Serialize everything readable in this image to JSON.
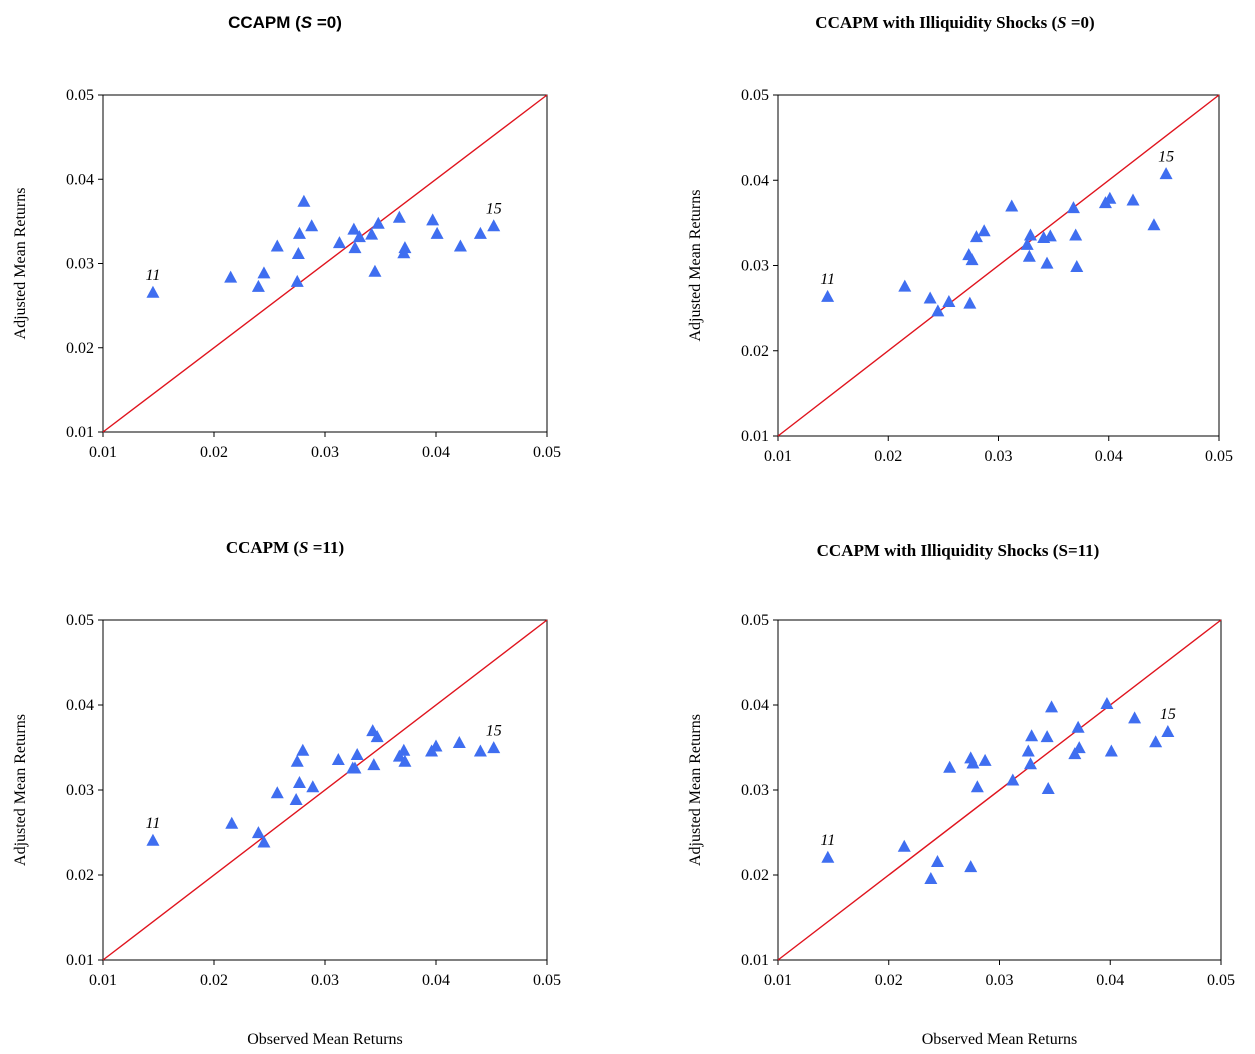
{
  "chart_data": [
    {
      "type": "scatter",
      "title_prefix": "CCAPM (",
      "title_var": "S",
      "title_suffix": " =0)",
      "xlabel": "",
      "ylabel": "Adjusted Mean Returns",
      "xlim": [
        0.01,
        0.05
      ],
      "ylim": [
        0.01,
        0.05
      ],
      "xticks": [
        "0.01",
        "0.02",
        "0.03",
        "0.04",
        "0.05"
      ],
      "yticks": [
        "0.01",
        "0.02",
        "0.03",
        "0.04",
        "0.05"
      ],
      "reference_line": "45-degree",
      "reference_color": "#e0141e",
      "marker_color": "#3f6ef0",
      "annotations": [
        {
          "text": "11",
          "x": 0.0145,
          "y": 0.0265
        },
        {
          "text": "15",
          "x": 0.0452,
          "y": 0.0344
        }
      ],
      "points": [
        [
          0.0145,
          0.0265
        ],
        [
          0.0215,
          0.0283
        ],
        [
          0.024,
          0.0272
        ],
        [
          0.0245,
          0.0288
        ],
        [
          0.0257,
          0.032
        ],
        [
          0.0275,
          0.0278
        ],
        [
          0.0276,
          0.0311
        ],
        [
          0.0277,
          0.0335
        ],
        [
          0.0281,
          0.0373
        ],
        [
          0.0288,
          0.0344
        ],
        [
          0.0313,
          0.0324
        ],
        [
          0.0326,
          0.034
        ],
        [
          0.0327,
          0.0318
        ],
        [
          0.0331,
          0.0331
        ],
        [
          0.0342,
          0.0334
        ],
        [
          0.0345,
          0.029
        ],
        [
          0.0348,
          0.0347
        ],
        [
          0.0367,
          0.0354
        ],
        [
          0.0371,
          0.0312
        ],
        [
          0.0372,
          0.0318
        ],
        [
          0.0397,
          0.0351
        ],
        [
          0.0401,
          0.0335
        ],
        [
          0.0422,
          0.032
        ],
        [
          0.044,
          0.0335
        ],
        [
          0.0452,
          0.0344
        ]
      ]
    },
    {
      "type": "scatter",
      "title_prefix": "CCAPM with Illiquidity Shocks (",
      "title_var": "S",
      "title_suffix": " =0)",
      "xlabel": "",
      "ylabel": "Adjusted Mean Returns",
      "xlim": [
        0.01,
        0.05
      ],
      "ylim": [
        0.01,
        0.05
      ],
      "xticks": [
        "0.01",
        "0.02",
        "0.03",
        "0.04",
        "0.05"
      ],
      "yticks": [
        "0.01",
        "0.02",
        "0.03",
        "0.04",
        "0.05"
      ],
      "reference_line": "45-degree",
      "reference_color": "#e0141e",
      "marker_color": "#3f6ef0",
      "annotations": [
        {
          "text": "11",
          "x": 0.0145,
          "y": 0.0263
        },
        {
          "text": "15",
          "x": 0.0452,
          "y": 0.0407
        }
      ],
      "points": [
        [
          0.0145,
          0.0263
        ],
        [
          0.0215,
          0.0275
        ],
        [
          0.0238,
          0.0261
        ],
        [
          0.0245,
          0.0246
        ],
        [
          0.0255,
          0.0257
        ],
        [
          0.0273,
          0.0312
        ],
        [
          0.0274,
          0.0255
        ],
        [
          0.0276,
          0.0306
        ],
        [
          0.028,
          0.0333
        ],
        [
          0.0287,
          0.034
        ],
        [
          0.0312,
          0.0369
        ],
        [
          0.0326,
          0.0324
        ],
        [
          0.0328,
          0.031
        ],
        [
          0.0329,
          0.0335
        ],
        [
          0.0341,
          0.0332
        ],
        [
          0.0344,
          0.0302
        ],
        [
          0.0347,
          0.0334
        ],
        [
          0.0368,
          0.0367
        ],
        [
          0.037,
          0.0335
        ],
        [
          0.0371,
          0.0298
        ],
        [
          0.0397,
          0.0373
        ],
        [
          0.0401,
          0.0378
        ],
        [
          0.0422,
          0.0376
        ],
        [
          0.0441,
          0.0347
        ],
        [
          0.0452,
          0.0407
        ]
      ]
    },
    {
      "type": "scatter",
      "title_prefix": "CCAPM (",
      "title_var": "S",
      "title_suffix": " =11)",
      "xlabel": "Observed Mean Returns",
      "ylabel": "Adjusted Mean Returns",
      "xlim": [
        0.01,
        0.05
      ],
      "ylim": [
        0.01,
        0.05
      ],
      "xticks": [
        "0.01",
        "0.02",
        "0.03",
        "0.04",
        "0.05"
      ],
      "yticks": [
        "0.01",
        "0.02",
        "0.03",
        "0.04",
        "0.05"
      ],
      "reference_line": "45-degree",
      "reference_color": "#e0141e",
      "marker_color": "#3f6ef0",
      "annotations": [
        {
          "text": "11",
          "x": 0.0145,
          "y": 0.024
        },
        {
          "text": "15",
          "x": 0.0452,
          "y": 0.0349
        }
      ],
      "points": [
        [
          0.0145,
          0.024
        ],
        [
          0.0216,
          0.026
        ],
        [
          0.024,
          0.0249
        ],
        [
          0.0245,
          0.0238
        ],
        [
          0.0257,
          0.0296
        ],
        [
          0.0274,
          0.0288
        ],
        [
          0.0275,
          0.0333
        ],
        [
          0.0277,
          0.0308
        ],
        [
          0.028,
          0.0346
        ],
        [
          0.0289,
          0.0303
        ],
        [
          0.0312,
          0.0335
        ],
        [
          0.0325,
          0.0325
        ],
        [
          0.0327,
          0.0325
        ],
        [
          0.0329,
          0.0341
        ],
        [
          0.0343,
          0.0369
        ],
        [
          0.0344,
          0.0329
        ],
        [
          0.0347,
          0.0362
        ],
        [
          0.0367,
          0.0339
        ],
        [
          0.0371,
          0.0346
        ],
        [
          0.0372,
          0.0333
        ],
        [
          0.0396,
          0.0345
        ],
        [
          0.04,
          0.0351
        ],
        [
          0.0421,
          0.0355
        ],
        [
          0.044,
          0.0345
        ],
        [
          0.0452,
          0.0349
        ]
      ]
    },
    {
      "type": "scatter",
      "title_prefix": "CCAPM with Illiquidity Shocks (",
      "title_var": "S",
      "title_suffix": "=11)",
      "xlabel": "Observed Mean Returns",
      "ylabel": "Adjusted Mean Returns",
      "xlim": [
        0.01,
        0.05
      ],
      "ylim": [
        0.01,
        0.05
      ],
      "xticks": [
        "0.01",
        "0.02",
        "0.03",
        "0.04",
        "0.05"
      ],
      "yticks": [
        "0.01",
        "0.02",
        "0.03",
        "0.04",
        "0.05"
      ],
      "reference_line": "45-degree",
      "reference_color": "#e0141e",
      "marker_color": "#3f6ef0",
      "annotations": [
        {
          "text": "11",
          "x": 0.0145,
          "y": 0.022
        },
        {
          "text": "15",
          "x": 0.0452,
          "y": 0.0368
        }
      ],
      "points": [
        [
          0.0145,
          0.022
        ],
        [
          0.0214,
          0.0233
        ],
        [
          0.0238,
          0.0195
        ],
        [
          0.0244,
          0.0215
        ],
        [
          0.0255,
          0.0326
        ],
        [
          0.0274,
          0.0209
        ],
        [
          0.0274,
          0.0337
        ],
        [
          0.0276,
          0.0331
        ],
        [
          0.028,
          0.0303
        ],
        [
          0.0287,
          0.0334
        ],
        [
          0.0312,
          0.0311
        ],
        [
          0.0326,
          0.0345
        ],
        [
          0.0328,
          0.033
        ],
        [
          0.0329,
          0.0363
        ],
        [
          0.0343,
          0.0362
        ],
        [
          0.0344,
          0.0301
        ],
        [
          0.0347,
          0.0397
        ],
        [
          0.0368,
          0.0342
        ],
        [
          0.0371,
          0.0373
        ],
        [
          0.0372,
          0.0349
        ],
        [
          0.0397,
          0.0401
        ],
        [
          0.0401,
          0.0345
        ],
        [
          0.0422,
          0.0384
        ],
        [
          0.0441,
          0.0356
        ],
        [
          0.0452,
          0.0368
        ]
      ]
    }
  ]
}
